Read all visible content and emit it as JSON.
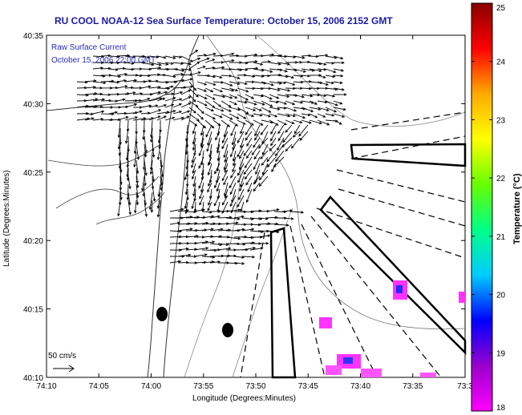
{
  "title": "RU COOL  NOAA-12  Sea Surface Temperature:  October 15, 2006 2152 GMT",
  "legend": {
    "line1": "Raw Surface Current",
    "line2": "October 15, 2006 22:00 GMT"
  },
  "scale_label": "50 cm/s",
  "xlabel": "Longitude (Degrees:Minutes)",
  "ylabel": "Latitude (Degrees:Minutes)",
  "x_ticks": [
    "74:10",
    "74:05",
    "74:00",
    "73:55",
    "73:50",
    "73:45",
    "73:40",
    "73:35",
    "73:3"
  ],
  "y_ticks": [
    "40:35",
    "40:30",
    "40:25",
    "40:20",
    "40:15",
    "40:10"
  ],
  "colorbar": {
    "label": "Temperature (°C)",
    "ticks": [
      "25",
      "24",
      "23",
      "22",
      "21",
      "20",
      "19",
      "18"
    ],
    "min": 18,
    "max": 25,
    "stops": [
      "#ff00ff",
      "#9900cc",
      "#0000ff",
      "#00ccff",
      "#00ff88",
      "#66ff00",
      "#ffff00",
      "#ffaa00",
      "#ff0000",
      "#880000"
    ]
  },
  "colors": {
    "title": "#1a1aa6",
    "legend": "#2a2ab8",
    "sst_warm": "#ff00ff",
    "sst_cool": "#0000ff"
  }
}
